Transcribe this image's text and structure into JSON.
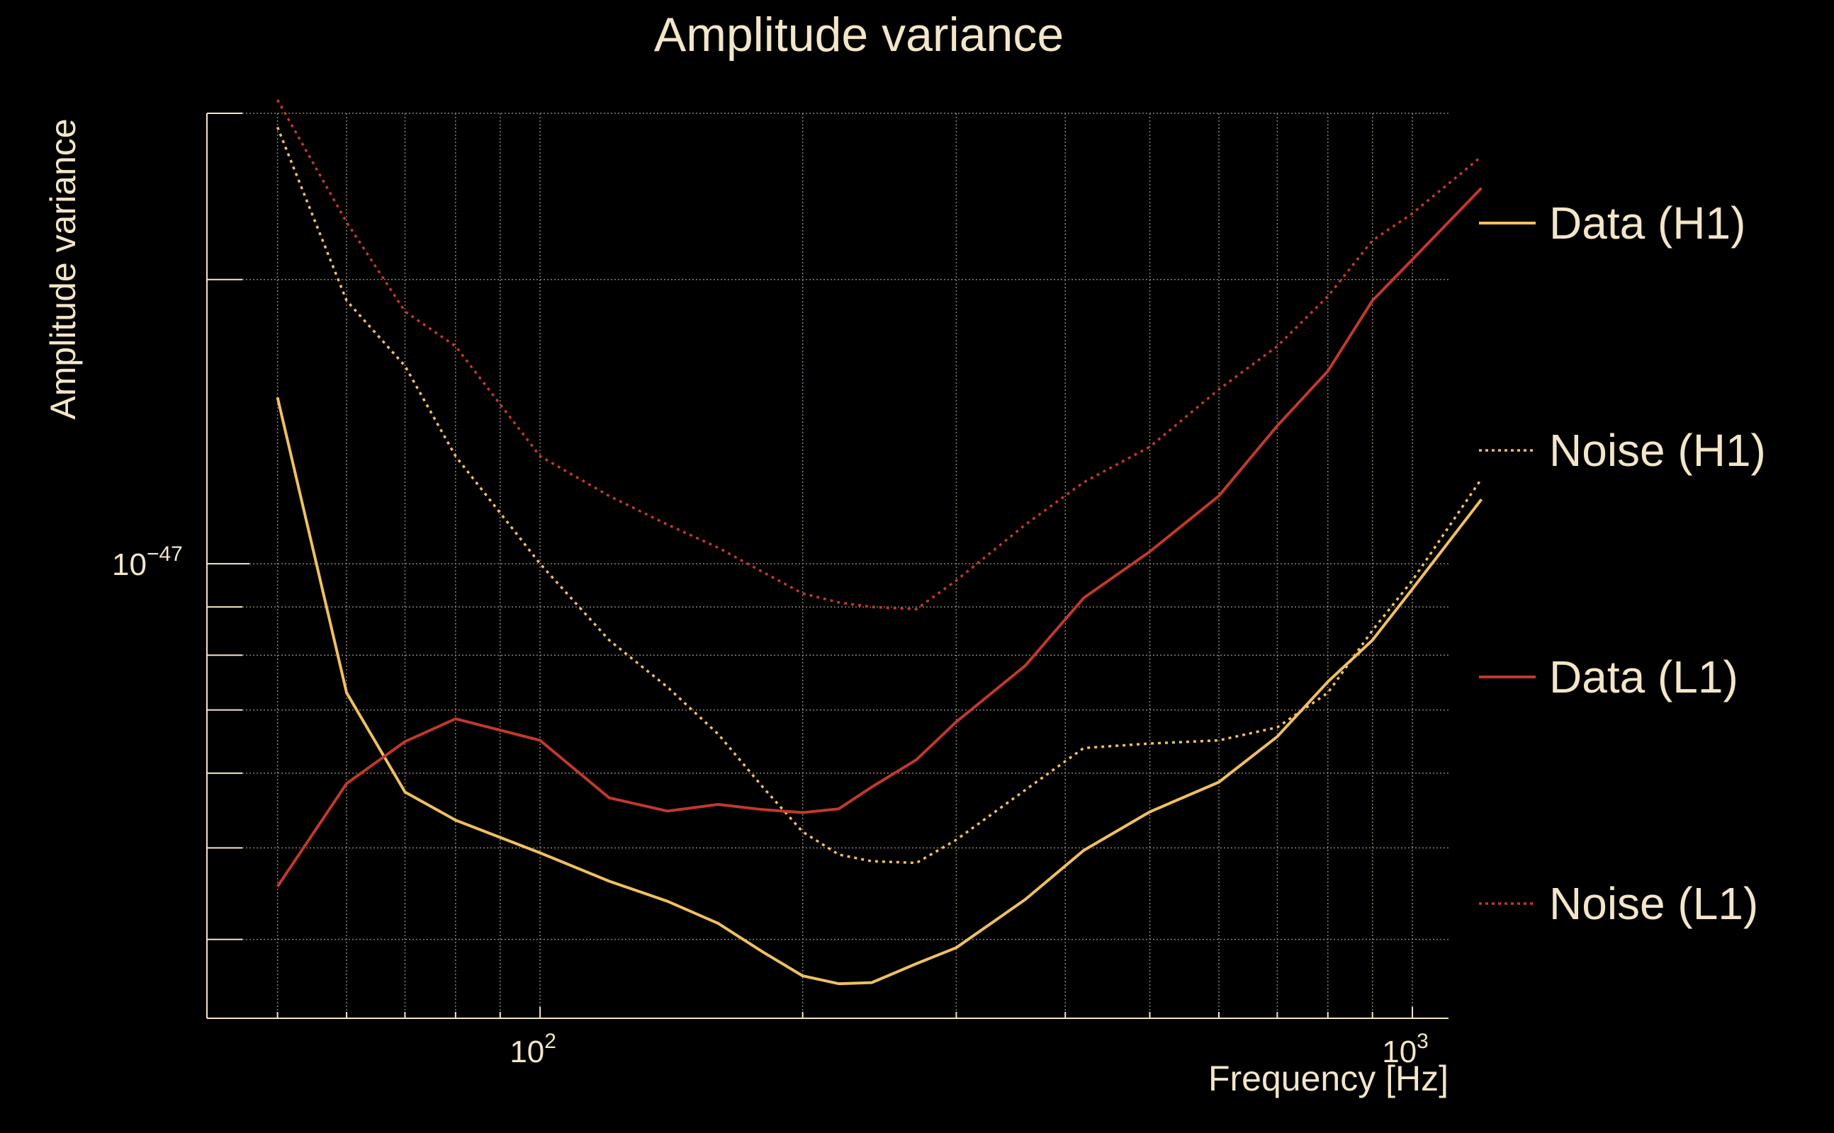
{
  "chart_data": {
    "type": "line",
    "title": "Amplitude variance",
    "xlabel": "Frequency [Hz]",
    "ylabel": "Amplitude variance",
    "xscale": "log",
    "yscale": "log",
    "xlim": [
      41.5,
      1100
    ],
    "ylim": [
      3.3e-48,
      3e-47
    ],
    "x_ticks": [
      {
        "value": 100,
        "base": "10",
        "exp": "2"
      },
      {
        "value": 1000,
        "base": "10",
        "exp": "3"
      }
    ],
    "y_ticks": [
      {
        "value": 1e-47,
        "base": "10",
        "exp": "−47"
      }
    ],
    "grid": true,
    "legend_position": "right",
    "x": [
      50,
      60,
      70,
      80,
      100,
      120,
      140,
      160,
      180,
      200,
      220,
      240,
      270,
      300,
      360,
      420,
      500,
      600,
      700,
      800,
      900,
      1000,
      1200
    ],
    "series": [
      {
        "name": "Data (H1)",
        "color": "#f0c060",
        "style": "solid",
        "values": [
          1.5e-47,
          7.3e-48,
          5.73e-48,
          5.35e-48,
          4.94e-48,
          4.61e-48,
          4.39e-48,
          4.16e-48,
          3.88e-48,
          3.66e-48,
          3.59e-48,
          3.6e-48,
          3.77e-48,
          3.92e-48,
          4.41e-48,
          4.97e-48,
          5.46e-48,
          5.87e-48,
          6.56e-48,
          7.5e-48,
          8.3e-48,
          9.4e-48,
          1.17e-47
        ]
      },
      {
        "name": "Noise (H1)",
        "color": "#f0c060",
        "style": "dotted",
        "values": [
          2.9e-47,
          1.9e-47,
          1.62e-47,
          1.3e-47,
          1e-47,
          8.3e-48,
          7.4e-48,
          6.6e-48,
          5.8e-48,
          5.2e-48,
          4.92e-48,
          4.84e-48,
          4.82e-48,
          5.1e-48,
          5.76e-48,
          6.38e-48,
          6.45e-48,
          6.5e-48,
          6.71e-48,
          7.3e-48,
          8.5e-48,
          9.6e-48,
          1.23e-47
        ]
      },
      {
        "name": "Data (L1)",
        "color": "#c0392b",
        "style": "solid",
        "values": [
          4.55e-48,
          5.85e-48,
          6.48e-48,
          6.85e-48,
          6.5e-48,
          5.65e-48,
          5.47e-48,
          5.56e-48,
          5.49e-48,
          5.45e-48,
          5.5e-48,
          5.8e-48,
          6.2e-48,
          6.8e-48,
          7.8e-48,
          9.2e-48,
          1.03e-47,
          1.18e-47,
          1.4e-47,
          1.6e-47,
          1.9e-47,
          2.1e-47,
          2.5e-47
        ]
      },
      {
        "name": "Noise (L1)",
        "color": "#c0392b",
        "style": "dotted",
        "values": [
          3.1e-47,
          2.3e-47,
          1.85e-47,
          1.7e-47,
          1.3e-47,
          1.18e-47,
          1.1e-47,
          1.04e-47,
          9.8e-48,
          9.3e-48,
          9.1e-48,
          9e-48,
          8.95e-48,
          9.6e-48,
          1.1e-47,
          1.22e-47,
          1.33e-47,
          1.53e-47,
          1.7e-47,
          1.92e-47,
          2.2e-47,
          2.35e-47,
          2.7e-47
        ]
      }
    ]
  }
}
